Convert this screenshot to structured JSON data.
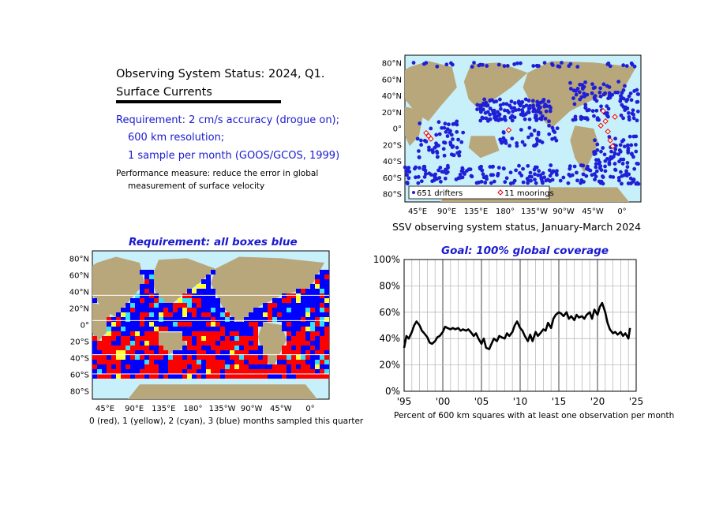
{
  "header": {
    "title_line1": "Observing System Status: 2024, Q1.",
    "title_line2": "Surface Currents",
    "requirement_line1": "Requirement: 2 cm/s accuracy (drogue on);",
    "requirement_line2": "600 km resolution;",
    "requirement_line3": "1 sample per month (GOOS/GCOS, 1999)",
    "performance_line1": "Performance measure: reduce the error in global",
    "performance_line2": "measurement of surface velocity"
  },
  "colors": {
    "ocean": "#c8f0fa",
    "land": "#b9a77c",
    "drifter": "#1f1fd6",
    "red": "#ff0000",
    "yellow": "#ffff33",
    "cyan": "#33e0ff",
    "blue": "#0000ff",
    "line": "#000000"
  },
  "map_top": {
    "lat_labels": [
      "80°N",
      "60°N",
      "40°N",
      "20°N",
      "0°",
      "20°S",
      "40°S",
      "60°S",
      "80°S"
    ],
    "lon_labels": [
      "45°E",
      "90°E",
      "135°E",
      "180°",
      "135°W",
      "90°W",
      "45°W",
      "0°"
    ],
    "legend_drifters": "651 drifters",
    "legend_moorings": "11 moorings",
    "caption": "SSV observing system status, January-March 2024"
  },
  "map_bottom": {
    "title": "Requirement: all boxes blue",
    "lat_labels": [
      "80°N",
      "60°N",
      "40°N",
      "20°N",
      "0°",
      "20°S",
      "40°S",
      "60°S",
      "80°S"
    ],
    "lon_labels": [
      "45°E",
      "90°E",
      "135°E",
      "180°",
      "135°W",
      "90°W",
      "45°W",
      "0°"
    ],
    "caption": "0 (red), 1 (yellow), 2 (cyan), 3 (blue) months sampled this quarter"
  },
  "chart_data": {
    "type": "line",
    "title": "Goal: 100% global coverage",
    "xlabel": "Percent of 600 km squares with at least one observation per month",
    "ylabel": "",
    "x_tick_labels": [
      "'95",
      "'00",
      "'05",
      "'10",
      "'15",
      "'20",
      "'25"
    ],
    "y_tick_labels": [
      "0%",
      "20%",
      "40%",
      "60%",
      "80%",
      "100%"
    ],
    "xlim": [
      1995,
      2025
    ],
    "ylim": [
      0,
      100
    ],
    "grid": true,
    "series": [
      {
        "x": [
          1995.0,
          1995.3,
          1995.6,
          1996.0,
          1996.3,
          1996.6,
          1997.0,
          1997.3,
          1997.6,
          1998.0,
          1998.3,
          1998.6,
          1999.0,
          1999.3,
          1999.6,
          2000.0,
          2000.3,
          2000.6,
          2001.0,
          2001.3,
          2001.6,
          2002.0,
          2002.3,
          2002.6,
          2003.0,
          2003.3,
          2003.6,
          2004.0,
          2004.3,
          2004.6,
          2005.0,
          2005.3,
          2005.6,
          2006.0,
          2006.3,
          2006.6,
          2007.0,
          2007.3,
          2007.6,
          2008.0,
          2008.3,
          2008.6,
          2009.0,
          2009.3,
          2009.6,
          2010.0,
          2010.3,
          2010.6,
          2011.0,
          2011.3,
          2011.6,
          2012.0,
          2012.3,
          2012.6,
          2013.0,
          2013.3,
          2013.6,
          2014.0,
          2014.3,
          2014.6,
          2015.0,
          2015.3,
          2015.6,
          2016.0,
          2016.3,
          2016.6,
          2017.0,
          2017.3,
          2017.6,
          2018.0,
          2018.3,
          2018.6,
          2019.0,
          2019.3,
          2019.6,
          2020.0,
          2020.3,
          2020.6,
          2021.0,
          2021.3,
          2021.6,
          2022.0,
          2022.3,
          2022.6,
          2023.0,
          2023.3,
          2023.6,
          2024.0,
          2024.2
        ],
        "values": [
          33,
          42,
          40,
          45,
          50,
          53,
          50,
          46,
          44,
          41,
          37,
          36,
          38,
          41,
          42,
          45,
          49,
          48,
          47,
          48,
          47,
          48,
          46,
          47,
          46,
          47,
          45,
          42,
          44,
          40,
          36,
          40,
          33,
          32,
          36,
          40,
          38,
          42,
          41,
          40,
          44,
          42,
          45,
          50,
          53,
          48,
          46,
          42,
          38,
          43,
          38,
          45,
          42,
          44,
          47,
          46,
          52,
          48,
          55,
          58,
          60,
          59,
          57,
          60,
          55,
          57,
          54,
          58,
          56,
          57,
          55,
          58,
          60,
          55,
          62,
          58,
          64,
          67,
          60,
          52,
          47,
          44,
          45,
          43,
          45,
          42,
          44,
          40,
          48
        ]
      }
    ]
  }
}
